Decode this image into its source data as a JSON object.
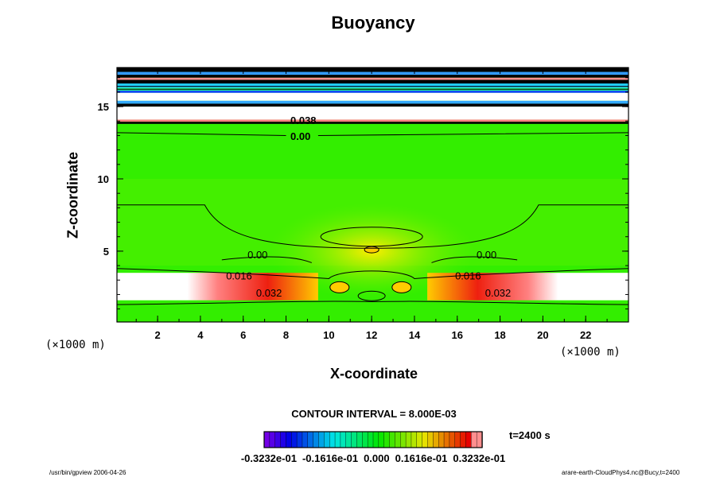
{
  "chart_data": {
    "type": "contour",
    "title": "Buoyancy",
    "xlabel": "X-coordinate",
    "ylabel": "Z-coordinate",
    "x_unit": "(×1000 m)",
    "y_unit": "(×1000 m)",
    "xlim": [
      0.1,
      24
    ],
    "ylim": [
      0.1,
      17.7
    ],
    "x_ticks": [
      "2",
      "4",
      "6",
      "8",
      "10",
      "12",
      "14",
      "16",
      "18",
      "20",
      "22"
    ],
    "y_ticks": [
      "5",
      "10",
      "15"
    ],
    "contour_interval": "CONTOUR INTERVAL = 8.000E-03",
    "contour_labels_lower": [
      "0.00",
      "0.016",
      "0.032",
      "0.00",
      "0.016",
      "0.032"
    ],
    "contour_labels_upper": [
      "0.038",
      "0.00"
    ],
    "colorbar": {
      "range": [
        -0.03232,
        0.03232
      ],
      "tick_labels": [
        "-0.3232e-01",
        "-0.1616e-01",
        "0.000",
        "0.1616e-01",
        "0.3232e-01"
      ],
      "colormap": "rainbow purple-to-pink"
    },
    "time_label": "t=2400 s",
    "grid": false
  },
  "footer": {
    "left": "/usr/bin/gpview 2006-04-26",
    "right": "arare-earth-CloudPhys4.nc@Bucy,t=2400"
  },
  "colors": {
    "background_field": "#33ee00",
    "positive_max": "#ff2020",
    "beyond": "#ffffff"
  }
}
